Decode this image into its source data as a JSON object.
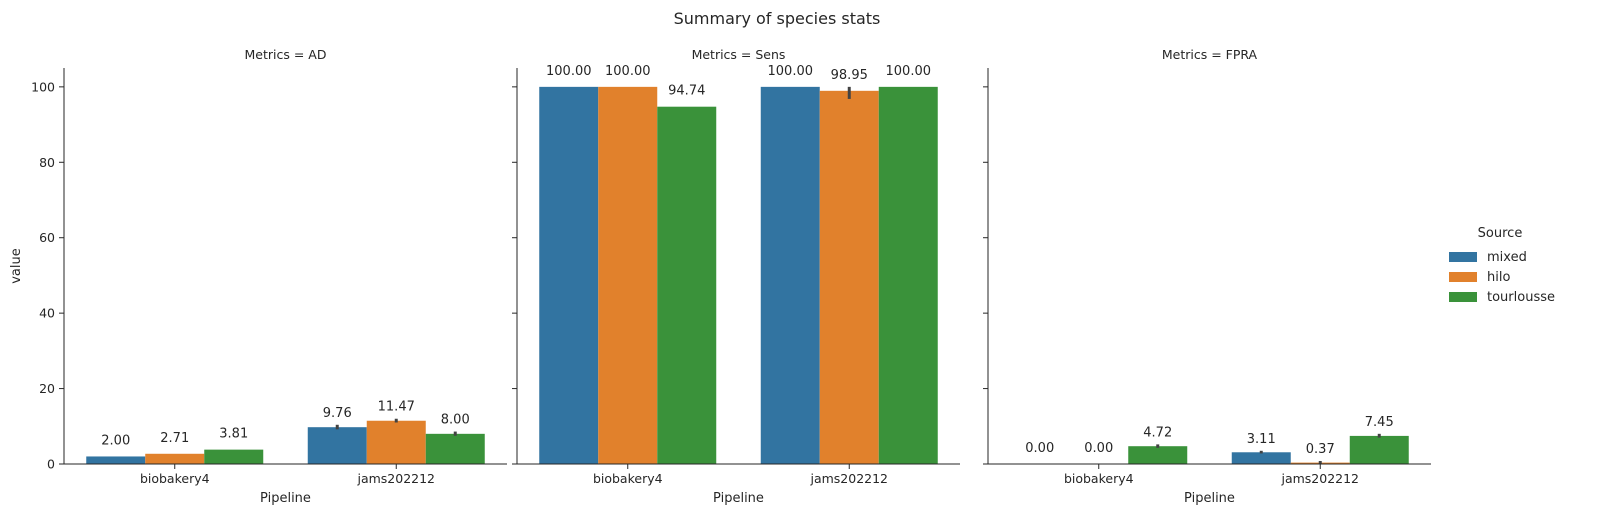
{
  "chart_data": {
    "type": "bar",
    "title": "Summary of species stats",
    "facet_variable": "Metrics",
    "facets": [
      {
        "metric": "AD",
        "title": "Metrics = AD",
        "values": {
          "mixed": [
            2.0,
            9.76
          ],
          "hilo": [
            2.71,
            11.47
          ],
          "tourlousse": [
            3.81,
            8.0
          ]
        },
        "labels": {
          "mixed": [
            "2.00",
            "9.76"
          ],
          "hilo": [
            "2.71",
            "11.47"
          ],
          "tourlousse": [
            "3.81",
            "8.00"
          ]
        },
        "error_bars": {
          "mixed": [
            null,
            [
              9.2,
              10.4
            ]
          ],
          "hilo": [
            null,
            [
              11.0,
              12.0
            ]
          ],
          "tourlousse": [
            null,
            [
              7.5,
              8.6
            ]
          ]
        }
      },
      {
        "metric": "Sens",
        "title": "Metrics = Sens",
        "values": {
          "mixed": [
            100.0,
            100.0
          ],
          "hilo": [
            100.0,
            98.95
          ],
          "tourlousse": [
            94.74,
            100.0
          ]
        },
        "labels": {
          "mixed": [
            "100.00",
            "100.00"
          ],
          "hilo": [
            "100.00",
            "98.95"
          ],
          "tourlousse": [
            "94.74",
            "100.00"
          ]
        },
        "error_bars": {
          "mixed": [
            null,
            null
          ],
          "hilo": [
            null,
            [
              96.8,
              100.0
            ]
          ],
          "tourlousse": [
            null,
            null
          ]
        }
      },
      {
        "metric": "FPRA",
        "title": "Metrics = FPRA",
        "values": {
          "mixed": [
            0.0,
            3.11
          ],
          "hilo": [
            0.0,
            0.37
          ],
          "tourlousse": [
            4.72,
            7.45
          ]
        },
        "labels": {
          "mixed": [
            "0.00",
            "3.11"
          ],
          "hilo": [
            "0.00",
            "0.37"
          ],
          "tourlousse": [
            "4.72",
            "7.45"
          ]
        },
        "error_bars": {
          "mixed": [
            null,
            [
              2.8,
              3.5
            ]
          ],
          "hilo": [
            null,
            [
              0.1,
              0.8
            ]
          ],
          "tourlousse": [
            [
              4.3,
              5.2
            ],
            [
              7.0,
              8.0
            ]
          ]
        }
      }
    ],
    "categories": [
      "biobakery4",
      "jams202212"
    ],
    "series": [
      {
        "name": "mixed",
        "color": "#3274a1"
      },
      {
        "name": "hilo",
        "color": "#e1812c"
      },
      {
        "name": "tourlousse",
        "color": "#3a923a"
      }
    ],
    "legend_title": "Source",
    "legend_position": "right",
    "xlabel": "Pipeline",
    "ylabel": "value",
    "ylim": [
      0,
      105
    ],
    "yticks": [
      0,
      20,
      40,
      60,
      80,
      100
    ],
    "grid": false
  }
}
